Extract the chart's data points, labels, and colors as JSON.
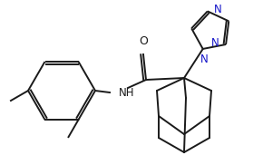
{
  "bg_color": "#ffffff",
  "line_color": "#1a1a1a",
  "n_color": "#1414c8",
  "lw": 1.4,
  "fs": 8.5,
  "figw": 2.9,
  "figh": 1.82,
  "xlim": [
    0,
    290
  ],
  "ylim": [
    0,
    182
  ]
}
